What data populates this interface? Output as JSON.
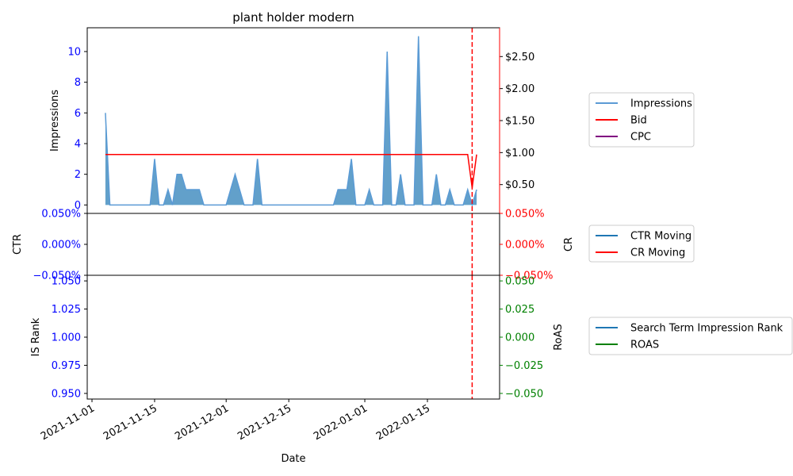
{
  "chart_data": [
    {
      "type": "area",
      "title": "plant holder modern",
      "ylabel_left": "Impressions",
      "ylim_left": [
        -0.55,
        11.55
      ],
      "yticks_left": [
        0,
        2,
        4,
        6,
        8,
        10
      ],
      "ylim_right": [
        0.05,
        2.95
      ],
      "yticks_right": [
        0.5,
        1.0,
        1.5,
        2.0,
        2.5
      ],
      "ytick_labels_right": [
        "$0.50",
        "$1.00",
        "$1.50",
        "$2.00",
        "$2.50"
      ],
      "x_dates": [
        "2021-11-04",
        "2021-11-05",
        "2021-11-06",
        "2021-11-07",
        "2021-11-08",
        "2021-11-09",
        "2021-11-10",
        "2021-11-11",
        "2021-11-12",
        "2021-11-13",
        "2021-11-14",
        "2021-11-15",
        "2021-11-16",
        "2021-11-17",
        "2021-11-18",
        "2021-11-19",
        "2021-11-20",
        "2021-11-21",
        "2021-11-22",
        "2021-11-23",
        "2021-11-24",
        "2021-11-25",
        "2021-11-26",
        "2021-11-27",
        "2021-11-28",
        "2021-11-29",
        "2021-11-30",
        "2021-12-01",
        "2021-12-02",
        "2021-12-03",
        "2021-12-04",
        "2021-12-05",
        "2021-12-06",
        "2021-12-07",
        "2021-12-08",
        "2021-12-09",
        "2021-12-10",
        "2021-12-11",
        "2021-12-12",
        "2021-12-13",
        "2021-12-14",
        "2021-12-15",
        "2021-12-16",
        "2021-12-17",
        "2021-12-18",
        "2021-12-19",
        "2021-12-20",
        "2021-12-21",
        "2021-12-22",
        "2021-12-23",
        "2021-12-24",
        "2021-12-25",
        "2021-12-26",
        "2021-12-27",
        "2021-12-28",
        "2021-12-29",
        "2021-12-30",
        "2021-12-31",
        "2022-01-01",
        "2022-01-02",
        "2022-01-03",
        "2022-01-04",
        "2022-01-05",
        "2022-01-06",
        "2022-01-07",
        "2022-01-08",
        "2022-01-09",
        "2022-01-10",
        "2022-01-11",
        "2022-01-12",
        "2022-01-13",
        "2022-01-14",
        "2022-01-15",
        "2022-01-16",
        "2022-01-17",
        "2022-01-18",
        "2022-01-19",
        "2022-01-20",
        "2022-01-21",
        "2022-01-22",
        "2022-01-23",
        "2022-01-24",
        "2022-01-25",
        "2022-01-26"
      ],
      "series": [
        {
          "name": "Impressions",
          "kind": "area",
          "color": "#5b9bd5",
          "values": [
            6,
            0,
            0,
            0,
            0,
            0,
            0,
            0,
            0,
            0,
            0,
            3,
            0,
            0,
            1,
            0,
            2,
            2,
            1,
            1,
            1,
            1,
            0,
            0,
            0,
            0,
            0,
            0,
            1,
            2,
            1,
            0,
            0,
            0,
            3,
            0,
            0,
            0,
            0,
            0,
            0,
            0,
            0,
            0,
            0,
            0,
            0,
            0,
            0,
            0,
            0,
            0,
            1,
            1,
            1,
            3,
            0,
            0,
            0,
            1,
            0,
            0,
            0,
            10,
            0,
            0,
            2,
            0,
            0,
            0,
            11,
            0,
            0,
            0,
            2,
            0,
            0,
            1,
            0,
            0,
            0,
            1,
            0,
            1
          ]
        },
        {
          "name": "Bid",
          "kind": "line",
          "color": "#ff0000",
          "axis": "right",
          "values": [
            0.97,
            0.97,
            0.97,
            0.97,
            0.97,
            0.97,
            0.97,
            0.97,
            0.97,
            0.97,
            0.97,
            0.97,
            0.97,
            0.97,
            0.97,
            0.97,
            0.97,
            0.97,
            0.97,
            0.97,
            0.97,
            0.97,
            0.97,
            0.97,
            0.97,
            0.97,
            0.97,
            0.97,
            0.97,
            0.97,
            0.97,
            0.97,
            0.97,
            0.97,
            0.97,
            0.97,
            0.97,
            0.97,
            0.97,
            0.97,
            0.97,
            0.97,
            0.97,
            0.97,
            0.97,
            0.97,
            0.97,
            0.97,
            0.97,
            0.97,
            0.97,
            0.97,
            0.97,
            0.97,
            0.97,
            0.97,
            0.97,
            0.97,
            0.97,
            0.97,
            0.97,
            0.97,
            0.97,
            0.97,
            0.97,
            0.97,
            0.97,
            0.97,
            0.97,
            0.97,
            0.97,
            0.97,
            0.97,
            0.97,
            0.97,
            0.97,
            0.97,
            0.97,
            0.97,
            0.97,
            0.97,
            0.97,
            0.45,
            0.97
          ]
        },
        {
          "name": "CPC",
          "kind": "line",
          "color": "#800080",
          "values": []
        }
      ],
      "vline_date": "2022-01-25",
      "legend": "right"
    },
    {
      "type": "line",
      "ylabel_left": "CTR",
      "ylabel_right": "CR",
      "ylim": [
        -0.0005,
        0.0005
      ],
      "ytick_labels_left": [
        "−0.050%",
        "0.000%",
        "0.050%"
      ],
      "ytick_labels_right": [
        "−0.050%",
        "0.000%",
        "0.050%"
      ],
      "series": [
        {
          "name": "CTR Moving",
          "color": "#1f77b4",
          "values": []
        },
        {
          "name": "CR Moving",
          "color": "#ff0000",
          "values": []
        }
      ],
      "legend": "right"
    },
    {
      "type": "line",
      "xlabel": "Date",
      "ylabel_left": "IS Rank",
      "ylabel_right": "RoAS",
      "ylim_left": [
        0.945,
        1.055
      ],
      "yticks_left": [
        "0.950",
        "0.975",
        "1.000",
        "1.025",
        "1.050"
      ],
      "ylim_right": [
        -0.055,
        0.055
      ],
      "yticks_right": [
        "−0.050",
        "−0.025",
        "0.000",
        "0.025",
        "0.050"
      ],
      "xticks": [
        "2021-11-01",
        "2021-11-15",
        "2021-12-01",
        "2021-12-15",
        "2022-01-01",
        "2022-01-15"
      ],
      "series": [
        {
          "name": "Search Term Impression Rank",
          "color": "#1f77b4",
          "values": []
        },
        {
          "name": "ROAS",
          "color": "#008000",
          "values": []
        }
      ],
      "legend": "right"
    }
  ],
  "colors": {
    "blue_tick": "#0000ff",
    "red_tick": "#ff0000",
    "green_tick": "#008000"
  }
}
